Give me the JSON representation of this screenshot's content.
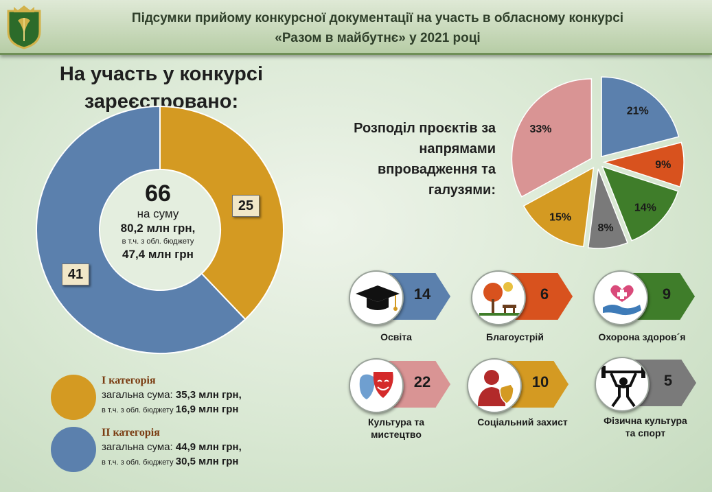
{
  "header": {
    "title_line1": "Підсумки прийому конкурсної документації на участь в обласному конкурсі",
    "title_line2": "«Разом в майбутнє» у 2021 році"
  },
  "left": {
    "heading_line1": "На участь у конкурсі",
    "heading_line2": "зареєстровано:",
    "center_total": "66",
    "center_sum_label": "на суму",
    "center_sum": "80,2 млн грн,",
    "center_budget_label": "в т.ч. з обл. бюджету",
    "center_budget": "47,4 млн грн",
    "label_cat1": "25",
    "label_cat2": "41"
  },
  "legend": {
    "cat1_title": "І категорія",
    "cat1_total_label": "загальна сума: ",
    "cat1_total": "35,3 млн грн,",
    "cat1_budget_label": "в т.ч. з обл. бюджету ",
    "cat1_budget": "16,9 млн грн",
    "cat2_title": "ІІ категорія",
    "cat2_total_label": "загальна сума: ",
    "cat2_total": "44,9 млн грн,",
    "cat2_budget_label": "в т.ч. з обл. бюджету ",
    "cat2_budget": "30,5 млн грн"
  },
  "pie_heading": {
    "line1": "Розподіл проєктів за",
    "line2": "напрямами",
    "line3": "впровадження та",
    "line4": "галузями:"
  },
  "colors": {
    "gold": "#d49a22",
    "blue": "#5b80ad",
    "pink": "#d99494",
    "green": "#3f7d2a",
    "orange": "#d8521e",
    "gray": "#7a7a7a"
  },
  "chart_data": [
    {
      "type": "pie",
      "style": "donut",
      "categories": [
        "І категорія",
        "ІІ категорія"
      ],
      "values": [
        25,
        41
      ],
      "colors": [
        "#d49a22",
        "#5b80ad"
      ]
    },
    {
      "type": "pie",
      "style": "exploded",
      "categories": [
        "Освіта",
        "Благоустрій",
        "Охорона здоров´я",
        "Фізична культура та спорт",
        "Соціальний захист",
        "Культура та мистецтво"
      ],
      "values": [
        21,
        9,
        14,
        8,
        15,
        33
      ],
      "labels": [
        "21%",
        "9%",
        "14%",
        "8%",
        "15%",
        "33%"
      ],
      "colors": [
        "#5b80ad",
        "#d8521e",
        "#3f7d2a",
        "#7a7a7a",
        "#d49a22",
        "#d99494"
      ]
    }
  ],
  "tiles": [
    {
      "label": "Освіта",
      "value": "14",
      "color": "#5b80ad",
      "icon": "graduation-cap-icon"
    },
    {
      "label": "Благоустрій",
      "value": "6",
      "color": "#d8521e",
      "icon": "park-icon"
    },
    {
      "label": "Охорона здоров´я",
      "value": "9",
      "color": "#3f7d2a",
      "icon": "healthcare-icon"
    },
    {
      "label_line1": "Культура та",
      "label_line2": "мистецтво",
      "value": "22",
      "color": "#d99494",
      "icon": "theatre-masks-icon"
    },
    {
      "label": "Соціальний захист",
      "value": "10",
      "color": "#d49a22",
      "icon": "social-protection-icon"
    },
    {
      "label_line1": "Фізична культура",
      "label_line2": "та спорт",
      "value": "5",
      "color": "#7a7a7a",
      "icon": "weightlifter-icon"
    }
  ]
}
